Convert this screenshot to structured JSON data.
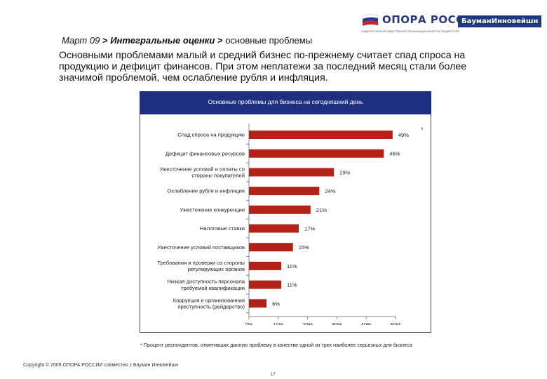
{
  "header": {
    "logo_text": "ОПОРА РОССИИ",
    "logo_sub": "ОБЩЕРОССИЙСКАЯ ОБЩЕСТВЕННАЯ ОРГАНИЗАЦИЯ МАЛОГО И СРЕДНЕГО ПРЕДПРИНИМАТЕЛЬСТВА",
    "badge": "БауманИнновейшн",
    "flag_colors": [
      "#ffffff",
      "#2a3a9a",
      "#cc2222"
    ]
  },
  "breadcrumb": {
    "part1": "Март 09",
    "sep": ">",
    "part2": "Интегральные оценки",
    "part3": "основные проблемы"
  },
  "lead_text": "Основными проблемами малый и средний бизнес по-прежнему считает спад спроса на продукцию и дефицит финансов. При этом неплатежи за последний месяц стали более значимой проблемой, чем ослабление рубля и инфляция.",
  "chart_data": {
    "type": "bar",
    "orientation": "horizontal",
    "title": "Основные проблемы для бизнеса на сегодняшний день",
    "title_mark": "*",
    "bar_color": "#b22218",
    "header_color": "#1f2f80",
    "categories": [
      [
        "Спад спроса на продукцию"
      ],
      [
        "Дефицит финансовых ресурсов"
      ],
      [
        "Ужесточение условий и оплаты со",
        "стороны покупателей"
      ],
      [
        "Ослабление рубля и инфляция"
      ],
      [
        "Ужесточение конкуренции"
      ],
      [
        "Налоговые ставки"
      ],
      [
        "Ужесточение условий поставщиков"
      ],
      [
        "Требования и проверки со стороны",
        "регулирующих органов"
      ],
      [
        "Низкая доступность персонала",
        "требуемой квалификации"
      ],
      [
        "Коррупция и организованная",
        "преступность (рейдерство)"
      ]
    ],
    "values": [
      49,
      46,
      29,
      24,
      21,
      17,
      15,
      11,
      11,
      6
    ],
    "value_labels": [
      "49%",
      "46%",
      "29%",
      "24%",
      "21%",
      "17%",
      "15%",
      "11%",
      "11%",
      "6%"
    ],
    "xlim": [
      0,
      50
    ],
    "xticks": [
      0,
      10,
      20,
      30,
      40,
      50
    ],
    "xtick_labels": [
      "0%",
      "10%",
      "20%",
      "30%",
      "40%",
      "50%"
    ],
    "grid": false
  },
  "footnote": "* Процент респондентов, отметивших данную проблему в качестве одной из трех наиболее серьезных для бизнеса",
  "copyright": "Copyright © 2009 ОПОРА РОССИИ совместно с Бауман Инновейшн",
  "page_number": "17"
}
